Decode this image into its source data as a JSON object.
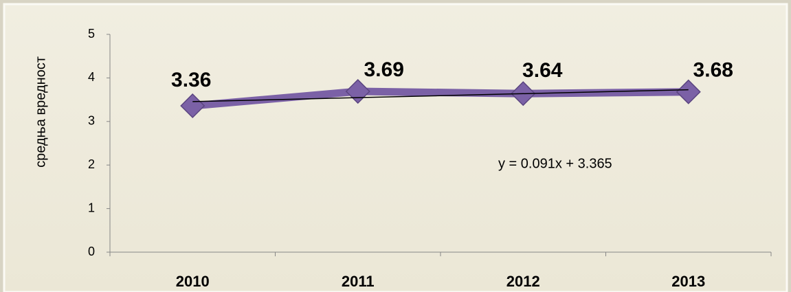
{
  "chart_data": {
    "type": "line",
    "y_label": "средња вредност",
    "categories": [
      "2010",
      "2011",
      "2012",
      "2013"
    ],
    "series": [
      {
        "name": "средња вредност",
        "color": "#7b61a6",
        "values": [
          3.36,
          3.69,
          3.64,
          3.68
        ]
      }
    ],
    "ylim": [
      0,
      5
    ],
    "yticks": [
      0,
      1,
      2,
      3,
      4,
      5
    ],
    "trendline": {
      "slope": 0.091,
      "intercept": 3.365,
      "label": "y = 0.091x + 3.365",
      "color": "#000000"
    },
    "grid": false
  }
}
